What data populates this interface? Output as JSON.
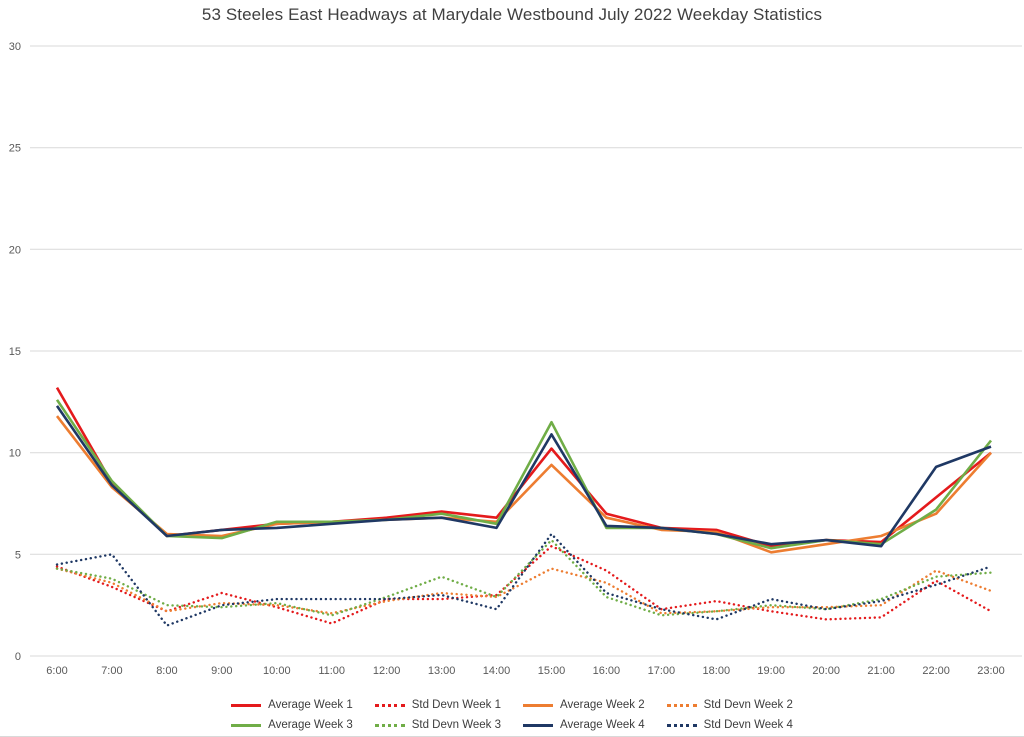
{
  "chart_data": {
    "type": "line",
    "title": "53 Steeles East Headways at Marydale Westbound July 2022 Weekday Statistics",
    "x": [
      "6:00",
      "7:00",
      "8:00",
      "9:00",
      "10:00",
      "11:00",
      "12:00",
      "13:00",
      "14:00",
      "15:00",
      "16:00",
      "17:00",
      "18:00",
      "19:00",
      "20:00",
      "21:00",
      "22:00",
      "23:00"
    ],
    "y_ticks": [
      0,
      5,
      10,
      15,
      20,
      25,
      30
    ],
    "ylim": [
      0,
      30
    ],
    "grid": true,
    "legend_position": "bottom",
    "colors": {
      "week1": "#e41a1c",
      "week2": "#ed7d31",
      "week3": "#70ad47",
      "week4": "#1f3864",
      "gridline": "#d9d9d9",
      "axis_text": "#595959"
    },
    "series": [
      {
        "name": "Average Week 1",
        "color": "#e41a1c",
        "style": "solid",
        "values": [
          13.2,
          8.5,
          5.9,
          6.2,
          6.5,
          6.6,
          6.8,
          7.1,
          6.8,
          10.2,
          7.0,
          6.3,
          6.2,
          5.4,
          5.7,
          5.6,
          7.8,
          10.0
        ]
      },
      {
        "name": "Std Devn Week 1",
        "color": "#e41a1c",
        "style": "dotted",
        "values": [
          4.4,
          3.4,
          2.2,
          3.1,
          2.4,
          1.6,
          2.8,
          2.8,
          3.0,
          5.4,
          4.2,
          2.3,
          2.7,
          2.2,
          1.8,
          1.9,
          3.7,
          2.2
        ]
      },
      {
        "name": "Average Week 2",
        "color": "#ed7d31",
        "style": "solid",
        "values": [
          11.8,
          8.3,
          6.0,
          5.9,
          6.5,
          6.6,
          6.7,
          6.8,
          6.6,
          9.4,
          6.8,
          6.2,
          6.1,
          5.1,
          5.5,
          5.9,
          7.0,
          10.0
        ]
      },
      {
        "name": "Std Devn Week 2",
        "color": "#ed7d31",
        "style": "dotted",
        "values": [
          4.3,
          3.6,
          2.2,
          2.6,
          2.5,
          2.1,
          2.7,
          3.1,
          2.9,
          4.3,
          3.6,
          2.1,
          2.2,
          2.4,
          2.4,
          2.5,
          4.2,
          3.2
        ]
      },
      {
        "name": "Average Week 3",
        "color": "#70ad47",
        "style": "solid",
        "values": [
          12.6,
          8.6,
          5.9,
          5.8,
          6.6,
          6.6,
          6.7,
          7.0,
          6.5,
          11.5,
          6.3,
          6.3,
          6.0,
          5.3,
          5.7,
          5.5,
          7.2,
          10.6
        ]
      },
      {
        "name": "Std Devn Week 3",
        "color": "#70ad47",
        "style": "dotted",
        "values": [
          4.3,
          3.8,
          2.5,
          2.4,
          2.6,
          2.0,
          2.9,
          3.9,
          2.9,
          5.7,
          2.9,
          2.0,
          2.2,
          2.5,
          2.3,
          2.8,
          3.9,
          4.1
        ]
      },
      {
        "name": "Average Week 4",
        "color": "#1f3864",
        "style": "solid",
        "values": [
          12.3,
          8.4,
          5.9,
          6.2,
          6.3,
          6.5,
          6.7,
          6.8,
          6.3,
          10.9,
          6.4,
          6.3,
          6.0,
          5.5,
          5.7,
          5.4,
          9.3,
          10.3
        ]
      },
      {
        "name": "Std Devn Week 4",
        "color": "#1f3864",
        "style": "dotted",
        "values": [
          4.5,
          5.0,
          1.5,
          2.5,
          2.8,
          2.8,
          2.8,
          3.0,
          2.3,
          6.0,
          3.1,
          2.3,
          1.8,
          2.8,
          2.3,
          2.7,
          3.5,
          4.4
        ]
      }
    ]
  }
}
